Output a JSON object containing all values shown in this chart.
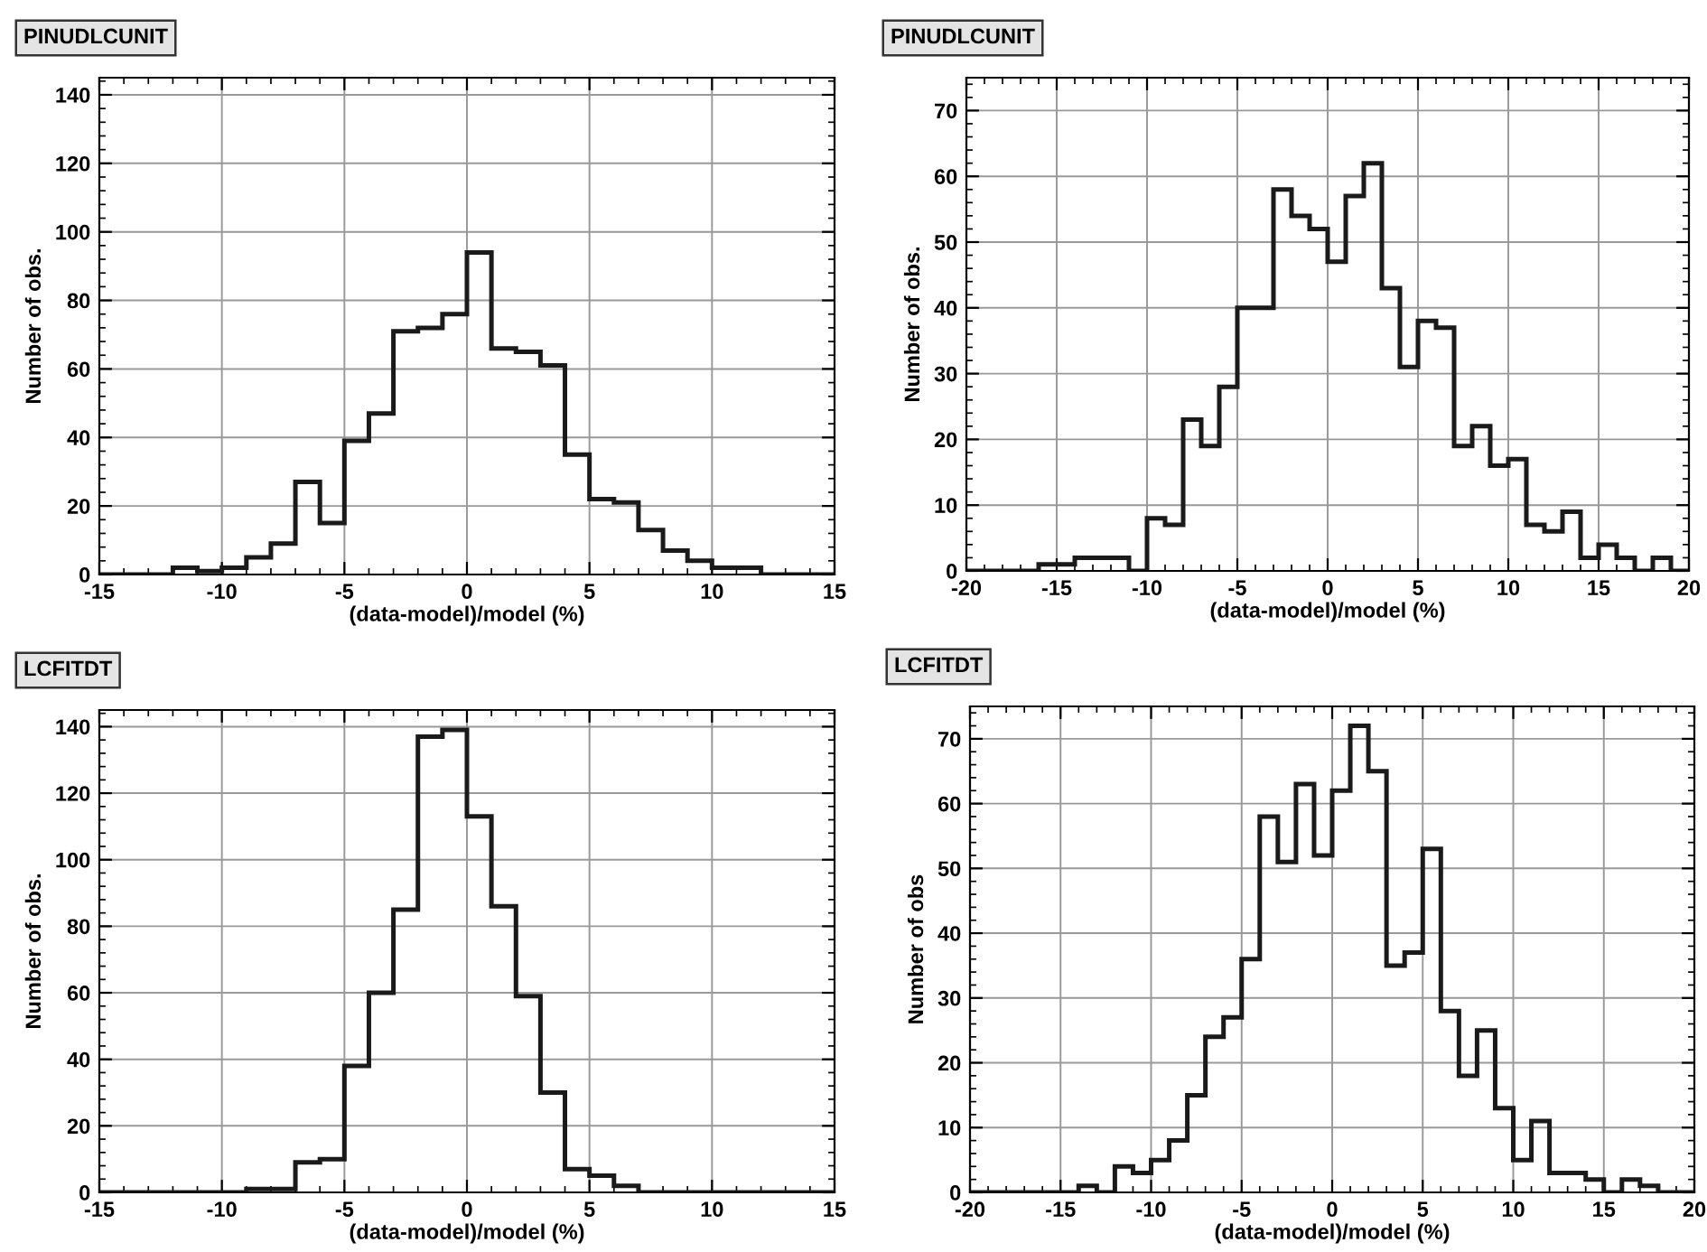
{
  "chart_data": [
    {
      "type": "histogram",
      "title": "PINUDLCUNIT",
      "xlabel": "(data-model)/model (%)",
      "ylabel": "Number of obs.",
      "bins": [
        -15,
        -14,
        -13,
        -12,
        -11,
        -10,
        -9,
        -8,
        -7,
        -6,
        -5,
        -4,
        -3,
        -2,
        -1,
        0,
        1,
        2,
        3,
        4,
        5,
        6,
        7,
        8,
        9,
        10,
        11,
        12,
        13,
        14,
        15
      ],
      "values": [
        0,
        0,
        0,
        2,
        1,
        2,
        5,
        9,
        27,
        15,
        39,
        47,
        71,
        72,
        76,
        94,
        66,
        65,
        61,
        35,
        22,
        21,
        13,
        7,
        4,
        2,
        2,
        0,
        0,
        0
      ],
      "color": "#1a1a1a",
      "xlim": [
        -15,
        15
      ],
      "xticks": [
        -15,
        -10,
        -5,
        0,
        5,
        10,
        15
      ],
      "ylim": [
        0,
        145
      ],
      "yticks": [
        0,
        20,
        40,
        60,
        80,
        100,
        120,
        140
      ],
      "grid": true
    },
    {
      "type": "histogram",
      "title": "PINUDLCUNIT",
      "xlabel": "(data-model)/model (%)",
      "ylabel": "Number of obs.",
      "bins": [
        -20,
        -19,
        -18,
        -17,
        -16,
        -15,
        -14,
        -13,
        -12,
        -11,
        -10,
        -9,
        -8,
        -7,
        -6,
        -5,
        -4,
        -3,
        -2,
        -1,
        0,
        1,
        2,
        3,
        4,
        5,
        6,
        7,
        8,
        9,
        10,
        11,
        12,
        13,
        14,
        15,
        16,
        17,
        18,
        19,
        20
      ],
      "values": [
        0,
        0,
        0,
        0,
        1,
        1,
        2,
        2,
        2,
        0,
        8,
        7,
        23,
        19,
        28,
        40,
        40,
        58,
        54,
        52,
        47,
        57,
        62,
        43,
        31,
        38,
        37,
        19,
        22,
        16,
        17,
        7,
        6,
        9,
        2,
        4,
        2,
        0,
        2,
        0
      ],
      "color": "#1a1a1a",
      "xlim": [
        -20,
        20
      ],
      "xticks": [
        -20,
        -15,
        -10,
        -5,
        0,
        5,
        10,
        15,
        20
      ],
      "ylim": [
        0,
        75
      ],
      "yticks": [
        0,
        10,
        20,
        30,
        40,
        50,
        60,
        70
      ],
      "grid": true
    },
    {
      "type": "histogram",
      "title": "LCFITDT",
      "xlabel": "(data-model)/model (%)",
      "ylabel": "Number of obs.",
      "bins": [
        -15,
        -14,
        -13,
        -12,
        -11,
        -10,
        -9,
        -8,
        -7,
        -6,
        -5,
        -4,
        -3,
        -2,
        -1,
        0,
        1,
        2,
        3,
        4,
        5,
        6,
        7,
        8,
        9,
        10,
        11,
        12,
        13,
        14,
        15
      ],
      "values": [
        0,
        0,
        0,
        0,
        0,
        0,
        1,
        1,
        9,
        10,
        38,
        60,
        85,
        137,
        139,
        113,
        86,
        59,
        30,
        7,
        5,
        2,
        0,
        0,
        0,
        0,
        0,
        0,
        0,
        0
      ],
      "color": "#1a1a1a",
      "xlim": [
        -15,
        15
      ],
      "xticks": [
        -15,
        -10,
        -5,
        0,
        5,
        10,
        15
      ],
      "ylim": [
        0,
        145
      ],
      "yticks": [
        0,
        20,
        40,
        60,
        80,
        100,
        120,
        140
      ],
      "grid": true
    },
    {
      "type": "histogram",
      "title": "LCFITDT",
      "xlabel": "(data-model)/model (%)",
      "ylabel": "Number of obs",
      "bins": [
        -20,
        -19,
        -18,
        -17,
        -16,
        -15,
        -14,
        -13,
        -12,
        -11,
        -10,
        -9,
        -8,
        -7,
        -6,
        -5,
        -4,
        -3,
        -2,
        -1,
        0,
        1,
        2,
        3,
        4,
        5,
        6,
        7,
        8,
        9,
        10,
        11,
        12,
        13,
        14,
        15,
        16,
        17,
        18,
        19,
        20
      ],
      "values": [
        0,
        0,
        0,
        0,
        0,
        0,
        1,
        0,
        4,
        3,
        5,
        8,
        15,
        24,
        27,
        36,
        58,
        51,
        63,
        52,
        62,
        72,
        65,
        35,
        37,
        53,
        28,
        18,
        25,
        13,
        5,
        11,
        3,
        3,
        2,
        0,
        2,
        1,
        0,
        0
      ],
      "color": "#1a1a1a",
      "xlim": [
        -20,
        20
      ],
      "xticks": [
        -20,
        -15,
        -10,
        -5,
        0,
        5,
        10,
        15,
        20
      ],
      "ylim": [
        0,
        75
      ],
      "yticks": [
        0,
        10,
        20,
        30,
        40,
        50,
        60,
        70
      ],
      "grid": true
    }
  ]
}
